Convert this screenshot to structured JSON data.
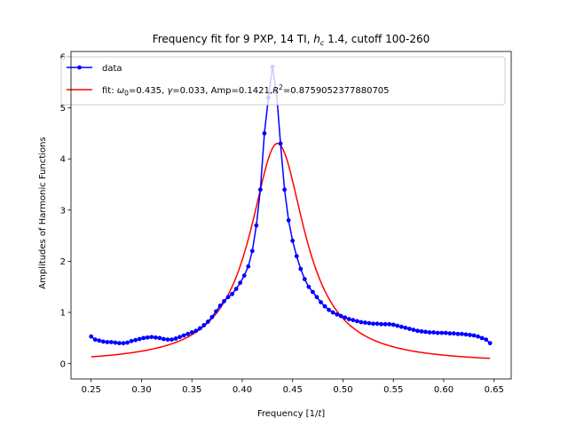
{
  "chart_data": {
    "type": "line",
    "title": "Frequency fit for 9 PXP, 14 TI, h_c 1.4, cutoff 100-260",
    "title_parts": {
      "before": "Frequency fit for 9 PXP, 14 TI, ",
      "h": "h",
      "sub": "c",
      "after": " 1.4, cutoff 100-260"
    },
    "xlabel": "Frequency [1/t]",
    "xlabel_parts": {
      "before": "Frequency [1/",
      "var": "t",
      "after": "]"
    },
    "ylabel": "Amplitudes of Harmonic Functions",
    "xlim": [
      0.23,
      0.667
    ],
    "ylim": [
      -0.3,
      6.1
    ],
    "xticks": [
      0.25,
      0.3,
      0.35,
      0.4,
      0.45,
      0.5,
      0.55,
      0.6,
      0.65
    ],
    "xtick_labels": [
      "0.25",
      "0.30",
      "0.35",
      "0.40",
      "0.45",
      "0.50",
      "0.55",
      "0.60",
      "0.65"
    ],
    "yticks": [
      0,
      1,
      2,
      3,
      4,
      5,
      6
    ],
    "ytick_labels": [
      "0",
      "1",
      "2",
      "3",
      "4",
      "5",
      "6"
    ],
    "grid": false,
    "legend_position": "top-left",
    "series": [
      {
        "name": "data",
        "color": "#0000ff",
        "style": "line-with-markers",
        "x": [
          0.25,
          0.254,
          0.258,
          0.262,
          0.266,
          0.27,
          0.274,
          0.278,
          0.282,
          0.286,
          0.29,
          0.294,
          0.298,
          0.302,
          0.306,
          0.31,
          0.314,
          0.318,
          0.322,
          0.326,
          0.33,
          0.334,
          0.338,
          0.342,
          0.346,
          0.35,
          0.354,
          0.358,
          0.362,
          0.366,
          0.37,
          0.374,
          0.378,
          0.382,
          0.386,
          0.39,
          0.394,
          0.398,
          0.402,
          0.406,
          0.41,
          0.414,
          0.418,
          0.422,
          0.426,
          0.43,
          0.434,
          0.438,
          0.442,
          0.446,
          0.45,
          0.454,
          0.458,
          0.462,
          0.466,
          0.47,
          0.474,
          0.478,
          0.482,
          0.486,
          0.49,
          0.494,
          0.498,
          0.502,
          0.506,
          0.51,
          0.514,
          0.518,
          0.522,
          0.526,
          0.53,
          0.534,
          0.538,
          0.542,
          0.546,
          0.55,
          0.554,
          0.558,
          0.562,
          0.566,
          0.57,
          0.574,
          0.578,
          0.582,
          0.586,
          0.59,
          0.594,
          0.598,
          0.602,
          0.606,
          0.61,
          0.614,
          0.618,
          0.622,
          0.626,
          0.63,
          0.634,
          0.638,
          0.642,
          0.646
        ],
        "y": [
          0.53,
          0.47,
          0.45,
          0.43,
          0.42,
          0.42,
          0.41,
          0.4,
          0.4,
          0.41,
          0.44,
          0.46,
          0.48,
          0.5,
          0.51,
          0.52,
          0.51,
          0.5,
          0.48,
          0.47,
          0.47,
          0.49,
          0.52,
          0.55,
          0.58,
          0.61,
          0.64,
          0.69,
          0.75,
          0.82,
          0.91,
          1.02,
          1.13,
          1.22,
          1.3,
          1.36,
          1.46,
          1.58,
          1.72,
          1.9,
          2.2,
          2.7,
          3.4,
          4.5,
          5.2,
          5.8,
          5.3,
          4.3,
          3.4,
          2.8,
          2.4,
          2.1,
          1.85,
          1.65,
          1.5,
          1.4,
          1.3,
          1.2,
          1.12,
          1.05,
          1.0,
          0.96,
          0.93,
          0.9,
          0.87,
          0.85,
          0.83,
          0.81,
          0.8,
          0.79,
          0.78,
          0.78,
          0.77,
          0.77,
          0.77,
          0.76,
          0.74,
          0.72,
          0.7,
          0.68,
          0.66,
          0.64,
          0.63,
          0.62,
          0.61,
          0.61,
          0.6,
          0.6,
          0.6,
          0.59,
          0.59,
          0.58,
          0.58,
          0.57,
          0.56,
          0.55,
          0.53,
          0.5,
          0.47,
          0.4
        ]
      },
      {
        "name": "fit",
        "legend_parts": [
          "fit: ",
          "ω",
          "0",
          "=0.435, ",
          "γ",
          "=0.033, Amp=0.1421,",
          "R",
          "2",
          "=0.8759052377880705"
        ],
        "color": "#ff0000",
        "style": "line",
        "model": "lorentzian",
        "params": {
          "omega0": 0.435,
          "gamma": 0.033,
          "amp": 0.1421,
          "r2": 0.8759052377880705
        },
        "x_range": [
          0.25,
          0.646
        ]
      }
    ]
  }
}
